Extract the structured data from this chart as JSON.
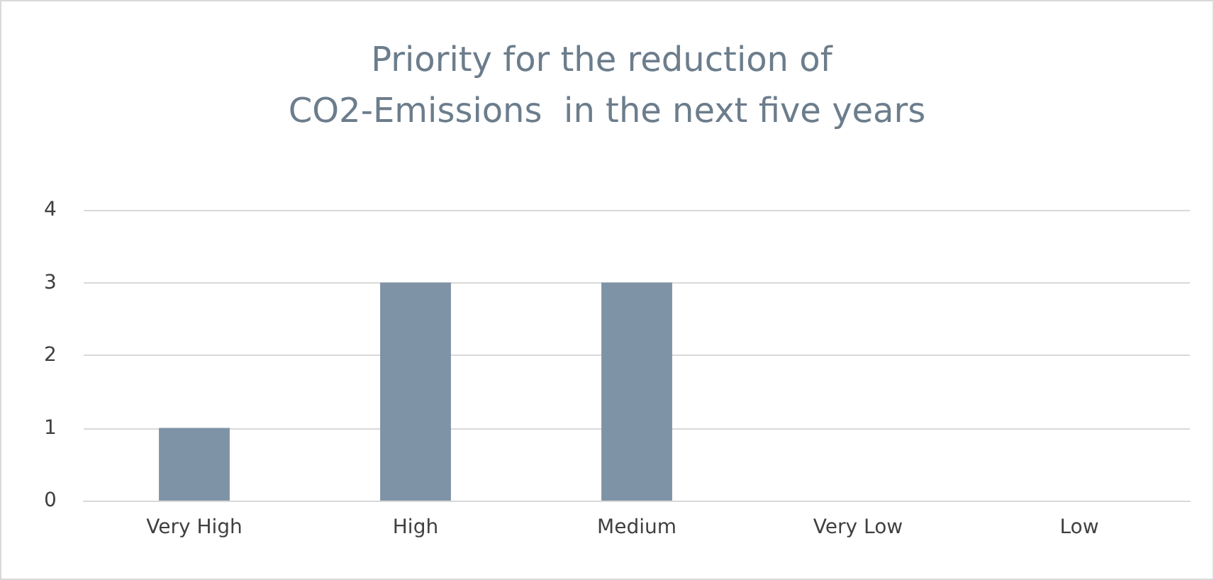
{
  "chart_data": {
    "type": "bar",
    "title": "Priority for the reduction of CO2-Emissions  in the next five years",
    "categories": [
      "Very High",
      "High",
      "Medium",
      "Very Low",
      "Low"
    ],
    "values": [
      1,
      3,
      3,
      0,
      0
    ],
    "color": "#7f93a6",
    "ylim": [
      0,
      4
    ],
    "yticks": [
      0,
      1,
      2,
      3,
      4
    ],
    "grid": "y"
  }
}
